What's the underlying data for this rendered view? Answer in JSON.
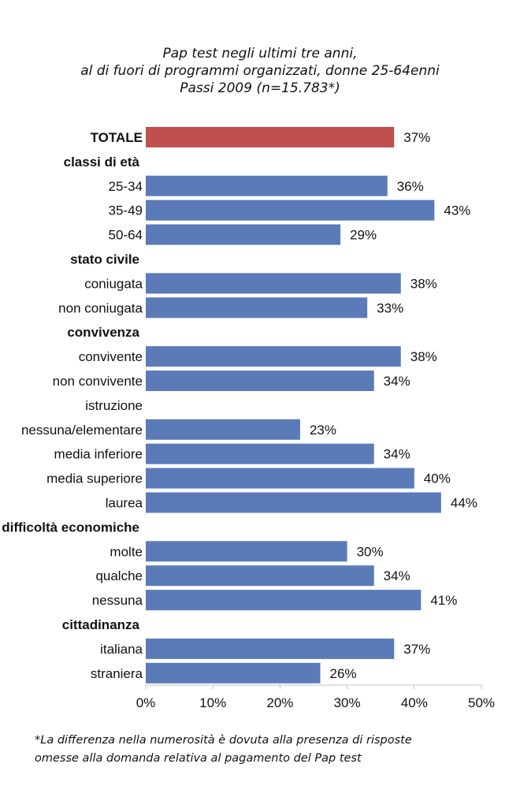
{
  "chart_data": {
    "type": "bar",
    "orientation": "horizontal",
    "title": [
      "Pap test negli ultimi tre anni,",
      "al di fuori di programmi organizzati, donne 25-64enni",
      "Passi 2009 (n=15.783*)"
    ],
    "xlim": [
      0,
      50
    ],
    "x_ticks": [
      "0%",
      "10%",
      "20%",
      "30%",
      "40%",
      "50%"
    ],
    "x_tick_values": [
      0,
      10,
      20,
      30,
      40,
      50
    ],
    "colors": {
      "total": "#c0504d",
      "bar": "#5b7bb8",
      "axis": "#c0c0c0"
    },
    "rows": [
      {
        "label": "TOTALE",
        "kind": "total",
        "value": 37,
        "value_label": "37%"
      },
      {
        "label": "classi di età",
        "kind": "header"
      },
      {
        "label": "25-34",
        "kind": "bar",
        "value": 36,
        "value_label": "36%"
      },
      {
        "label": "35-49",
        "kind": "bar",
        "value": 43,
        "value_label": "43%"
      },
      {
        "label": "50-64",
        "kind": "bar",
        "value": 29,
        "value_label": "29%"
      },
      {
        "label": "stato civile",
        "kind": "header"
      },
      {
        "label": "coniugata",
        "kind": "bar",
        "value": 38,
        "value_label": "38%"
      },
      {
        "label": "non coniugata",
        "kind": "bar",
        "value": 33,
        "value_label": "33%"
      },
      {
        "label": "convivenza",
        "kind": "header"
      },
      {
        "label": "convivente",
        "kind": "bar",
        "value": 38,
        "value_label": "38%"
      },
      {
        "label": "non convivente",
        "kind": "bar",
        "value": 34,
        "value_label": "34%"
      },
      {
        "label": "istruzione",
        "kind": "subheader"
      },
      {
        "label": "nessuna/elementare",
        "kind": "bar",
        "value": 23,
        "value_label": "23%"
      },
      {
        "label": "media inferiore",
        "kind": "bar",
        "value": 34,
        "value_label": "34%"
      },
      {
        "label": "media superiore",
        "kind": "bar",
        "value": 40,
        "value_label": "40%"
      },
      {
        "label": "laurea",
        "kind": "bar",
        "value": 44,
        "value_label": "44%"
      },
      {
        "label": "difficoltà economiche",
        "kind": "header"
      },
      {
        "label": "molte",
        "kind": "bar",
        "value": 30,
        "value_label": "30%"
      },
      {
        "label": "qualche",
        "kind": "bar",
        "value": 34,
        "value_label": "34%"
      },
      {
        "label": "nessuna",
        "kind": "bar",
        "value": 41,
        "value_label": "41%"
      },
      {
        "label": "cittadinanza",
        "kind": "header"
      },
      {
        "label": "italiana",
        "kind": "bar",
        "value": 37,
        "value_label": "37%"
      },
      {
        "label": "straniera",
        "kind": "bar",
        "value": 26,
        "value_label": "26%"
      }
    ]
  },
  "footnote": [
    "*La differenza nella numerosità è dovuta alla presenza di risposte",
    "omesse alla domanda relativa al pagamento del Pap test"
  ]
}
